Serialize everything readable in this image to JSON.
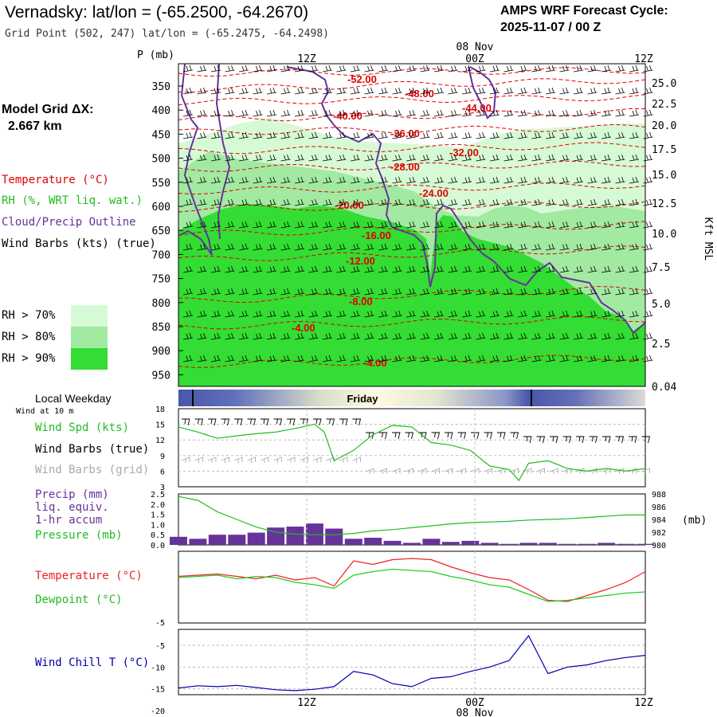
{
  "header": {
    "title": "Vernadsky:  lat/lon = (-65.2500, -64.2670)",
    "grid_point": "Grid Point (502, 247) lat/lon = (-65.2475, -64.2498)",
    "cycle_line1": "AMPS WRF Forecast Cycle:",
    "cycle_line2": "2025-11-07 / 00  Z"
  },
  "legend": {
    "model_grid": "Model Grid ΔX:",
    "model_grid_value": "2.667 km",
    "temperature": "Temperature (°C)",
    "rh": "RH (%, WRT liq. wat.)",
    "cloud": "Cloud/Precip Outline",
    "wind": "Wind Barbs (kts) (true)",
    "rh70": "RH > 70%",
    "rh80": "RH > 80%",
    "rh90": "RH > 90%"
  },
  "colors": {
    "rh70": "#d6fad6",
    "rh80": "#a2eaa2",
    "rh90": "#33dd33",
    "temp": "#e00000",
    "cloud": "#663399",
    "wind_speed": "#22bb22",
    "precip": "#663399",
    "pressure": "#22bb22",
    "temperature": "#ee2222",
    "dewpoint": "#22cc22",
    "wind_chill": "#0000aa"
  },
  "time_axis": {
    "top_labels": [
      "12Z",
      "00Z",
      "12Z"
    ],
    "date_label": "08 Nov",
    "bottom_labels": [
      "12Z",
      "00Z",
      "12Z"
    ]
  },
  "day_bar": {
    "label": "Friday",
    "local_weekday_label": "Local Weekday"
  },
  "chart_data": [
    {
      "id": "sounding",
      "type": "heatmap",
      "title": "Time-height cross section",
      "ylabel_left": "P (mb)",
      "ylabel_right": "Kft MSL",
      "pressure_ticks": [
        "350",
        "400",
        "450",
        "500",
        "550",
        "600",
        "650",
        "700",
        "750",
        "800",
        "850",
        "900",
        "950"
      ],
      "height_ticks": [
        "25.0",
        "22.5",
        "20.0",
        "17.5",
        "15.0",
        "12.5",
        "10.0",
        "7.5",
        "5.0",
        "2.5",
        "0.04"
      ],
      "temperature_contours": [
        "-52.00",
        "-48.00",
        "-44.00",
        "-40.00",
        "-36.00",
        "-32.00",
        "-28.00",
        "-24.00",
        "-20.00",
        "-16.00",
        "-12.00",
        "-8.00",
        "-4.00",
        "-4.00"
      ],
      "time_range_hours": [
        0,
        48
      ]
    },
    {
      "id": "wind",
      "type": "line",
      "header": "Wind at 10 m",
      "series_label": "Wind Spd (kts)",
      "barbs_true_label": "Wind Barbs (true)",
      "barbs_grid_label": "Wind Barbs (grid)",
      "y_ticks": [
        "18",
        "15",
        "12",
        "9",
        "6",
        "3"
      ],
      "ylim": [
        3,
        18
      ],
      "x": [
        0,
        2,
        4,
        6,
        8,
        10,
        12,
        14,
        15,
        16,
        18,
        20,
        22,
        24,
        26,
        28,
        30,
        32,
        34,
        35,
        36,
        38,
        40,
        42,
        44,
        46,
        48
      ],
      "values": [
        14.5,
        13.5,
        12.3,
        12.8,
        13.2,
        13.5,
        14.2,
        15.0,
        13.5,
        8.0,
        10.0,
        13.0,
        14.8,
        14.5,
        11.5,
        11.0,
        10.0,
        7.0,
        6.3,
        4.2,
        7.5,
        8.0,
        6.5,
        6.0,
        6.5,
        6.0,
        6.5
      ]
    },
    {
      "id": "precip_pressure",
      "type": "bar",
      "labels": [
        "Precip (mm)",
        "liq. equiv.",
        "1-hr accum",
        "Pressure (mb)"
      ],
      "y_ticks_left": [
        "2.5",
        "2.0",
        "1.5",
        "1.0",
        "0.5",
        "0.0"
      ],
      "y_ticks_right": [
        "988",
        "986",
        "984",
        "982",
        "980"
      ],
      "right_unit": "(mb)",
      "precip_ylim": [
        0,
        2.5
      ],
      "pressure_ylim": [
        980,
        988
      ],
      "precip_x": [
        0,
        2,
        4,
        6,
        8,
        10,
        12,
        14,
        16,
        18,
        20,
        22,
        24,
        26,
        28,
        30,
        32,
        34,
        36,
        38,
        40,
        42,
        44,
        46,
        48
      ],
      "precip_values": [
        0.4,
        0.3,
        0.5,
        0.5,
        0.6,
        0.85,
        0.9,
        1.05,
        0.8,
        0.3,
        0.35,
        0.2,
        0.1,
        0.3,
        0.15,
        0.2,
        0.1,
        0.05,
        0.1,
        0.1,
        0.05,
        0.05,
        0.1,
        0.05,
        0.05
      ],
      "pressure_x": [
        0,
        2,
        4,
        6,
        8,
        10,
        12,
        14,
        16,
        18,
        20,
        22,
        24,
        26,
        28,
        30,
        32,
        34,
        36,
        38,
        40,
        42,
        44,
        46,
        48
      ],
      "pressure_values": [
        987.6,
        987.0,
        985.2,
        984.0,
        982.8,
        982.0,
        981.7,
        981.6,
        981.6,
        981.8,
        982.2,
        982.4,
        982.7,
        983.0,
        983.3,
        983.5,
        983.6,
        983.7,
        983.9,
        984.0,
        984.1,
        984.3,
        984.5,
        984.7,
        984.7
      ]
    },
    {
      "id": "temp_dew",
      "type": "line",
      "labels": [
        "Temperature (°C)",
        "Dewpoint (°C)"
      ],
      "y_ticks": [
        "-5"
      ],
      "ylim": [
        -5,
        1
      ],
      "x": [
        0,
        2,
        4,
        6,
        8,
        10,
        12,
        14,
        16,
        18,
        20,
        22,
        24,
        26,
        28,
        30,
        32,
        34,
        36,
        38,
        40,
        42,
        44,
        46,
        48
      ],
      "temperature": [
        -1.1,
        -1.0,
        -0.9,
        -1.1,
        -1.3,
        -1.0,
        -1.4,
        -1.2,
        -1.9,
        0.2,
        -0.1,
        0.3,
        0.4,
        0.3,
        -0.3,
        -0.8,
        -1.2,
        -1.4,
        -2.2,
        -3.1,
        -3.2,
        -2.7,
        -2.2,
        -1.6,
        -0.7
      ],
      "dewpoint": [
        -1.2,
        -1.1,
        -1.0,
        -1.3,
        -1.1,
        -1.2,
        -1.6,
        -1.8,
        -2.1,
        -1.0,
        -0.7,
        -0.5,
        -0.6,
        -0.7,
        -1.1,
        -1.4,
        -1.8,
        -2.0,
        -2.6,
        -3.2,
        -3.1,
        -2.9,
        -2.7,
        -2.5,
        -2.4
      ]
    },
    {
      "id": "wind_chill",
      "type": "line",
      "label": "Wind Chill T (°C)",
      "y_ticks": [
        "-5",
        "-10",
        "-15",
        "-20"
      ],
      "ylim": [
        -20,
        -5
      ],
      "x": [
        0,
        2,
        4,
        6,
        8,
        10,
        12,
        14,
        16,
        18,
        20,
        22,
        24,
        26,
        28,
        30,
        32,
        34,
        36,
        38,
        40,
        42,
        44,
        46,
        48
      ],
      "values": [
        -14.8,
        -14.3,
        -14.5,
        -14.2,
        -14.7,
        -15.2,
        -15.4,
        -15.1,
        -14.5,
        -11.0,
        -11.8,
        -13.8,
        -14.5,
        -12.6,
        -12.2,
        -11.0,
        -10.0,
        -8.5,
        -2.8,
        -11.5,
        -10.0,
        -9.5,
        -8.5,
        -7.8,
        -7.3
      ]
    }
  ]
}
